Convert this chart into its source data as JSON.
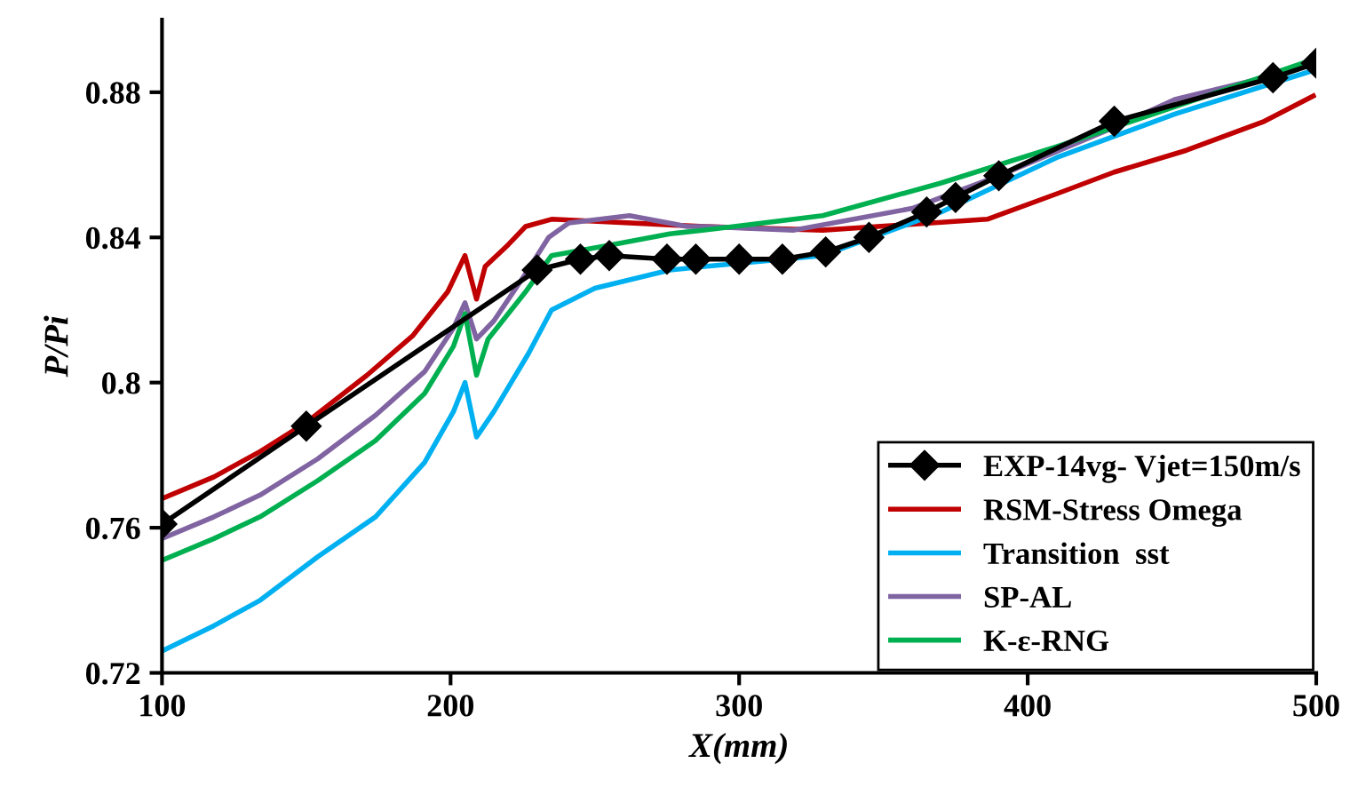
{
  "chart_data": {
    "type": "line",
    "xlabel": "X(mm)",
    "ylabel": "P/Pi",
    "xlim": [
      100,
      500
    ],
    "xticks": [
      100,
      200,
      300,
      400,
      500
    ],
    "ylim": [
      0.72,
      0.9
    ],
    "yticks": [
      0.72,
      0.76,
      0.8,
      0.84,
      0.88
    ],
    "grid": false,
    "legend": "bottom right",
    "series": [
      {
        "name": "EXP-14vg- Vjet=150m/s",
        "color": "#000000",
        "marker": "diamond",
        "x": [
          100,
          150,
          230,
          245,
          255,
          275,
          285,
          300,
          315,
          330,
          345,
          365,
          375,
          390,
          430,
          485,
          500
        ],
        "values": [
          0.761,
          0.788,
          0.831,
          0.834,
          0.835,
          0.834,
          0.834,
          0.834,
          0.834,
          0.836,
          0.84,
          0.847,
          0.851,
          0.857,
          0.872,
          0.884,
          0.888
        ]
      },
      {
        "name": "RSM-Stress Omega",
        "color": "#c00000",
        "x": [
          100,
          118,
          134,
          150,
          171,
          187,
          199,
          205,
          209,
          212,
          220,
          226,
          235,
          288,
          329,
          386,
          410,
          430,
          455,
          482,
          499
        ],
        "values": [
          0.768,
          0.774,
          0.781,
          0.789,
          0.802,
          0.813,
          0.825,
          0.835,
          0.823,
          0.832,
          0.838,
          0.843,
          0.845,
          0.843,
          0.842,
          0.845,
          0.852,
          0.858,
          0.864,
          0.872,
          0.879
        ]
      },
      {
        "name": "Transition  sst",
        "color": "#00b0f0",
        "x": [
          100,
          118,
          134,
          154,
          174,
          191,
          201,
          205,
          209,
          215,
          227,
          235,
          250,
          276,
          288,
          329,
          370,
          410,
          451,
          499
        ],
        "values": [
          0.726,
          0.733,
          0.74,
          0.752,
          0.763,
          0.778,
          0.792,
          0.8,
          0.785,
          0.792,
          0.808,
          0.82,
          0.826,
          0.831,
          0.832,
          0.835,
          0.847,
          0.862,
          0.874,
          0.886
        ]
      },
      {
        "name": "SP-AL",
        "color": "#8064a2",
        "x": [
          100,
          118,
          134,
          154,
          174,
          191,
          201,
          205,
          209,
          215,
          226,
          234,
          241,
          262,
          282,
          288,
          319,
          360,
          390,
          429,
          451,
          482,
          499
        ],
        "values": [
          0.757,
          0.763,
          0.769,
          0.779,
          0.791,
          0.803,
          0.815,
          0.822,
          0.812,
          0.817,
          0.83,
          0.84,
          0.844,
          0.846,
          0.843,
          0.843,
          0.842,
          0.848,
          0.857,
          0.87,
          0.878,
          0.884,
          0.889
        ]
      },
      {
        "name": "K-ε-RNG",
        "color": "#00b050",
        "x": [
          100,
          118,
          134,
          154,
          174,
          191,
          201,
          205,
          209,
          213,
          226,
          235,
          256,
          276,
          288,
          329,
          370,
          410,
          451,
          499
        ],
        "values": [
          0.751,
          0.757,
          0.763,
          0.773,
          0.784,
          0.797,
          0.81,
          0.819,
          0.802,
          0.812,
          0.825,
          0.835,
          0.838,
          0.841,
          0.842,
          0.846,
          0.855,
          0.865,
          0.876,
          0.889
        ]
      }
    ]
  }
}
